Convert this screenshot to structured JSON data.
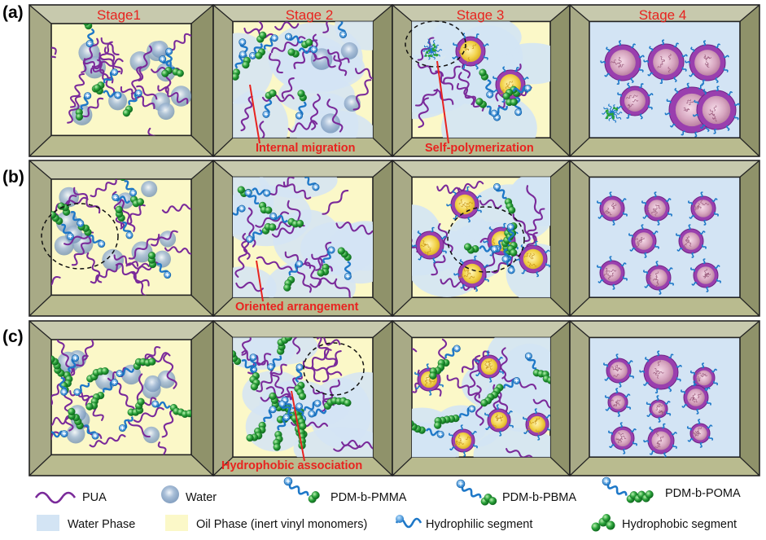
{
  "rows": [
    {
      "label": "(a)",
      "annotations": [
        "Internal migration",
        "Self-polymerization"
      ]
    },
    {
      "label": "(b)",
      "annotations": [
        "Oriented arrangement"
      ]
    },
    {
      "label": "(c)",
      "annotations": [
        "Hydrophobic association"
      ]
    }
  ],
  "stages": [
    "Stage1",
    "Stage 2",
    "Stage 3",
    "Stage  4"
  ],
  "legend": {
    "pua": "PUA",
    "water": "Water",
    "pmma": "PDM-b-PMMA",
    "pbma": "PDM-b-PBMA",
    "poma": "PDM-b-POMA",
    "water_phase": "Water Phase",
    "oil_phase": "Oil Phase (inert vinyl monomers)",
    "hydrophilic": "Hydrophilic segment",
    "hydrophobic": "Hydrophobic segment"
  },
  "colors": {
    "pua": "#7a2a9a",
    "hydrophilic": "#1e78c8",
    "hydrophobic": "#2aa23a",
    "oil_phase": "#fbf8c8",
    "water_phase": "#d3e4f4",
    "annotation": "#e8231f",
    "particle_shell": "#9a3fae",
    "particle_core_yellow": "#f2d24a",
    "particle_core_pink": "#d7a6c0"
  }
}
